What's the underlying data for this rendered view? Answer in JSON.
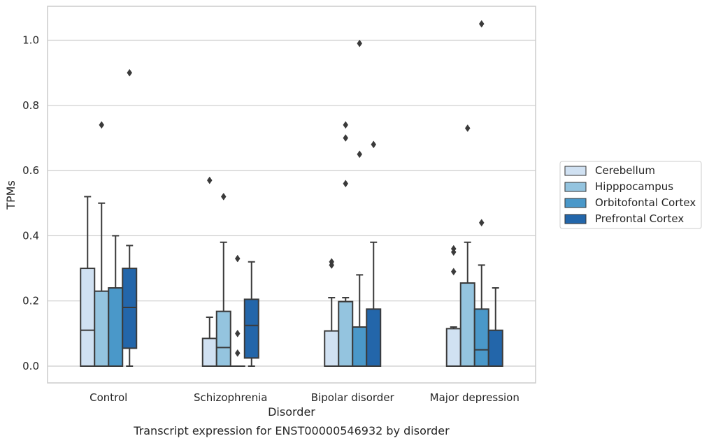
{
  "chart_data": {
    "type": "boxplot",
    "xlabel": "Disorder",
    "ylabel": "TPMs",
    "caption": "Transcript expression for ENST00000546932 by disorder",
    "ylim": [
      -0.05,
      1.1
    ],
    "yticks": [
      0.0,
      0.2,
      0.4,
      0.6,
      0.8,
      1.0
    ],
    "ytick_labels": [
      "0.0",
      "0.2",
      "0.4",
      "0.6",
      "0.8",
      "1.0"
    ],
    "grid": "horizontal",
    "legend_position": "right",
    "categories": [
      "Control",
      "Schizophrenia",
      "Bipolar disorder",
      "Major depression"
    ],
    "series": [
      {
        "name": "Cerebellum",
        "color": "#d0e1f2",
        "boxes": [
          {
            "whislo": 0.0,
            "q1": 0.0,
            "med": 0.11,
            "q3": 0.3,
            "whishi": 0.52,
            "fliers": []
          },
          {
            "whislo": 0.0,
            "q1": 0.0,
            "med": 0.0,
            "q3": 0.085,
            "whishi": 0.15,
            "fliers": [
              0.57
            ]
          },
          {
            "whislo": 0.0,
            "q1": 0.0,
            "med": 0.0,
            "q3": 0.108,
            "whishi": 0.21,
            "fliers": [
              0.31,
              0.32
            ]
          },
          {
            "whislo": 0.0,
            "q1": 0.0,
            "med": 0.0,
            "q3": 0.115,
            "whishi": 0.12,
            "fliers": [
              0.29,
              0.35,
              0.36
            ]
          }
        ]
      },
      {
        "name": "Hipppocampus",
        "color": "#94c4df",
        "boxes": [
          {
            "whislo": 0.0,
            "q1": 0.0,
            "med": 0.0,
            "q3": 0.23,
            "whishi": 0.5,
            "fliers": [
              0.74
            ]
          },
          {
            "whislo": 0.0,
            "q1": 0.0,
            "med": 0.057,
            "q3": 0.168,
            "whishi": 0.38,
            "fliers": [
              0.52
            ]
          },
          {
            "whislo": 0.0,
            "q1": 0.0,
            "med": 0.0,
            "q3": 0.198,
            "whishi": 0.21,
            "fliers": [
              0.56,
              0.7,
              0.74
            ]
          },
          {
            "whislo": 0.0,
            "q1": 0.0,
            "med": 0.0,
            "q3": 0.255,
            "whishi": 0.38,
            "fliers": [
              0.73
            ]
          }
        ]
      },
      {
        "name": "Orbitofontal Cortex",
        "color": "#4a98c9",
        "boxes": [
          {
            "whislo": 0.0,
            "q1": 0.0,
            "med": 0.0,
            "q3": 0.24,
            "whishi": 0.4,
            "fliers": []
          },
          {
            "whislo": 0.0,
            "q1": 0.0,
            "med": 0.0,
            "q3": 0.0,
            "whishi": 0.0,
            "fliers": [
              0.04,
              0.1,
              0.33
            ]
          },
          {
            "whislo": 0.0,
            "q1": 0.0,
            "med": 0.0,
            "q3": 0.12,
            "whishi": 0.28,
            "fliers": [
              0.65,
              0.99
            ]
          },
          {
            "whislo": 0.0,
            "q1": 0.0,
            "med": 0.05,
            "q3": 0.175,
            "whishi": 0.31,
            "fliers": [
              0.44,
              1.05
            ]
          }
        ]
      },
      {
        "name": "Prefrontal Cortex",
        "color": "#2366aa",
        "boxes": [
          {
            "whislo": 0.0,
            "q1": 0.055,
            "med": 0.18,
            "q3": 0.3,
            "whishi": 0.37,
            "fliers": [
              0.9
            ]
          },
          {
            "whislo": 0.0,
            "q1": 0.025,
            "med": 0.125,
            "q3": 0.205,
            "whishi": 0.32,
            "fliers": []
          },
          {
            "whislo": 0.0,
            "q1": 0.0,
            "med": 0.0,
            "q3": 0.175,
            "whishi": 0.38,
            "fliers": [
              0.68
            ]
          },
          {
            "whislo": 0.0,
            "q1": 0.0,
            "med": 0.0,
            "q3": 0.11,
            "whishi": 0.24,
            "fliers": []
          }
        ]
      }
    ]
  }
}
